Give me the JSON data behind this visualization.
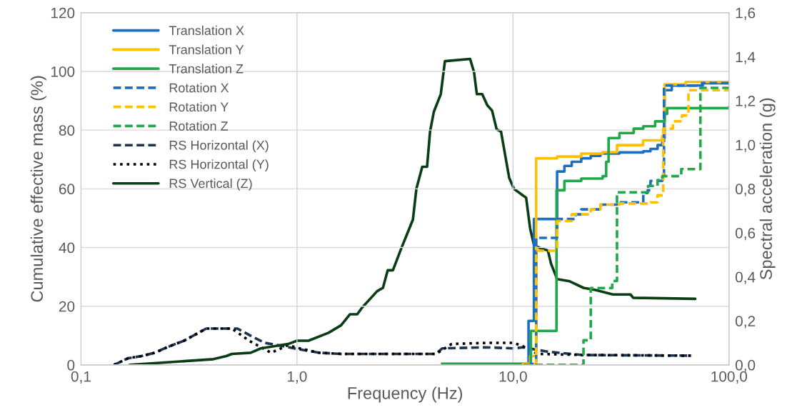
{
  "chart_data": {
    "type": "line",
    "xlabel": "Frequency (Hz)",
    "ylabel": "Cumulative effective mass (%)",
    "y2label": "Spectral acceleration (g)",
    "log": "x",
    "grid": true,
    "legend": "top left",
    "xlim": [
      0.1,
      100
    ],
    "xticks": [
      {
        "value": 0.1,
        "label": "0,1"
      },
      {
        "value": 1,
        "label": "1,0"
      },
      {
        "value": 10,
        "label": "10,0"
      },
      {
        "value": 100,
        "label": "100,0"
      }
    ],
    "ylim": [
      0,
      120
    ],
    "yticks": [
      0,
      20,
      40,
      60,
      80,
      100,
      120
    ],
    "y2lim": [
      0,
      1.6
    ],
    "y2ticks": [
      {
        "value": 0,
        "label": "0,0"
      },
      {
        "value": 0.2,
        "label": "0,2"
      },
      {
        "value": 0.4,
        "label": "0,4"
      },
      {
        "value": 0.6,
        "label": "0,6"
      },
      {
        "value": 0.8,
        "label": "0,8"
      },
      {
        "value": 1.0,
        "label": "1,0"
      },
      {
        "value": 1.2,
        "label": "1,2"
      },
      {
        "value": 1.4,
        "label": "1,4"
      },
      {
        "value": 1.6,
        "label": "1,6"
      }
    ],
    "series": [
      {
        "name": "Translation X",
        "type": "step",
        "color": "#1f6fc0",
        "line_style": "solid",
        "x": [
          4.7,
          10.8,
          11.8,
          12.5,
          15.4,
          16.0,
          17.3,
          18.7,
          20.7,
          22.9,
          25.4,
          31.1,
          40.1,
          43.3,
          46.7,
          49.1,
          50.3,
          54.3,
          75.6,
          100
        ],
        "values": [
          0.5,
          0.5,
          15,
          49.7,
          49.7,
          65.9,
          67.8,
          69.2,
          70.4,
          71.2,
          72.0,
          72.4,
          72.8,
          73.6,
          74.9,
          77.3,
          93.6,
          95.2,
          96.0,
          96.0
        ]
      },
      {
        "name": "Translation Y",
        "type": "step",
        "color": "#ffc000",
        "line_style": "solid",
        "x": [
          4.7,
          10.8,
          12.0,
          12.8,
          16,
          20.7,
          26,
          30.3,
          40,
          49.1,
          50.3,
          63,
          100
        ],
        "values": [
          0.5,
          0.5,
          3,
          70.4,
          71.0,
          72.0,
          72.5,
          74.9,
          76.5,
          78.1,
          95.6,
          96.4,
          96.6
        ]
      },
      {
        "name": "Translation Z",
        "type": "step",
        "color": "#21a84a",
        "line_style": "solid",
        "x": [
          4.7,
          11.2,
          12.1,
          15.2,
          15.9,
          17.3,
          20.7,
          26,
          27,
          27.7,
          31.1,
          36.2,
          40.1,
          45.5,
          50.3,
          51.7,
          100
        ],
        "values": [
          0.3,
          0.3,
          11.6,
          11.6,
          59.5,
          62.7,
          63.5,
          64.3,
          69.2,
          77.3,
          79.0,
          80.5,
          81.3,
          83.0,
          85.5,
          87.5,
          87.9
        ]
      },
      {
        "name": "Rotation X",
        "type": "step",
        "color": "#1f6fc0",
        "line_style": "dashed",
        "x": [
          11.5,
          12.2,
          12.8,
          15.4,
          16.0,
          19.5,
          20.7,
          25.4,
          30.3,
          40.1,
          42,
          43.3,
          49.1,
          50,
          75,
          100
        ],
        "values": [
          0.3,
          0.3,
          43.3,
          43.3,
          49.7,
          51.3,
          53.0,
          54.6,
          55.4,
          58.6,
          59.5,
          62.7,
          63.5,
          95.2,
          96.0,
          96.0
        ]
      },
      {
        "name": "Rotation Y",
        "type": "step",
        "color": "#ffc000",
        "line_style": "dashed",
        "x": [
          11.0,
          11.8,
          12.8,
          15.0,
          16.0,
          18.7,
          22.9,
          25.4,
          31.1,
          43.3,
          46.7,
          49.6,
          55,
          60.6,
          64.9,
          100
        ],
        "values": [
          0.3,
          0.3,
          38.9,
          38.9,
          49.0,
          51.3,
          53.0,
          54.6,
          55.0,
          55.4,
          57.8,
          80.5,
          83.0,
          85.0,
          93.6,
          93.6
        ]
      },
      {
        "name": "Rotation Z",
        "type": "step",
        "color": "#21a84a",
        "line_style": "dashed",
        "x": [
          4.7,
          20.2,
          21.2,
          22.9,
          28.8,
          30.3,
          42.2,
          46.7,
          49.1,
          60.1,
          73.7,
          100
        ],
        "values": [
          0.0,
          0.0,
          8.4,
          26.2,
          28.6,
          58.8,
          61.0,
          63.0,
          64.3,
          66.7,
          94.4,
          95.6
        ]
      },
      {
        "name": "RS Horizontal (X)",
        "axis": "y2",
        "color": "#1c3553",
        "line_style": "dashed",
        "x": [
          0.142,
          0.165,
          0.19,
          0.22,
          0.25,
          0.3,
          0.38,
          0.53,
          0.63,
          0.71,
          0.81,
          0.97,
          1.27,
          1.6,
          4.4,
          4.7,
          7.5,
          10.1,
          11.1,
          14.5,
          21,
          67
        ],
        "values": [
          0.0,
          0.03,
          0.04,
          0.055,
          0.08,
          0.11,
          0.165,
          0.165,
          0.125,
          0.1,
          0.09,
          0.075,
          0.055,
          0.05,
          0.05,
          0.075,
          0.08,
          0.075,
          0.08,
          0.06,
          0.045,
          0.042
        ]
      },
      {
        "name": "RS Horizontal (Y)",
        "axis": "y2",
        "color": "#000000",
        "line_style": "dotted",
        "x": [
          0.142,
          0.165,
          0.19,
          0.22,
          0.25,
          0.3,
          0.38,
          0.5,
          0.6,
          0.76,
          0.91,
          1.03,
          1.27,
          1.6,
          4.4,
          5.2,
          7.5,
          10.1,
          11.1,
          13,
          21,
          67
        ],
        "values": [
          0.0,
          0.03,
          0.04,
          0.055,
          0.08,
          0.11,
          0.165,
          0.165,
          0.11,
          0.055,
          0.09,
          0.075,
          0.055,
          0.05,
          0.05,
          0.095,
          0.1,
          0.1,
          0.085,
          0.05,
          0.045,
          0.042
        ]
      },
      {
        "name": "RS Vertical (Z)",
        "axis": "y2",
        "color": "#0b3d15",
        "line_style": "solid",
        "x": [
          0.168,
          0.41,
          0.47,
          0.5,
          0.61,
          0.68,
          0.91,
          1.0,
          1.13,
          1.4,
          1.6,
          1.76,
          1.9,
          2.0,
          2.35,
          2.5,
          2.63,
          2.78,
          3.04,
          3.44,
          3.57,
          3.8,
          4.0,
          4.13,
          4.3,
          4.63,
          4.84,
          6.33,
          6.6,
          6.8,
          7.2,
          7.6,
          8.0,
          8.4,
          8.8,
          9.6,
          10.1,
          11.1,
          11.5,
          12.0,
          12.5,
          13.4,
          14.5,
          15.0,
          16.0,
          18.3,
          21.2,
          24.1,
          29,
          35,
          36,
          69.8
        ],
        "values": [
          0.0,
          0.026,
          0.04,
          0.05,
          0.055,
          0.075,
          0.095,
          0.11,
          0.11,
          0.146,
          0.18,
          0.23,
          0.23,
          0.26,
          0.335,
          0.35,
          0.43,
          0.43,
          0.53,
          0.66,
          0.8,
          0.9,
          0.9,
          1.06,
          1.15,
          1.23,
          1.38,
          1.39,
          1.33,
          1.23,
          1.23,
          1.18,
          1.155,
          1.07,
          1.06,
          0.85,
          0.8,
          0.77,
          0.76,
          0.62,
          0.545,
          0.53,
          0.52,
          0.46,
          0.39,
          0.38,
          0.35,
          0.34,
          0.32,
          0.32,
          0.305,
          0.3
        ]
      }
    ]
  }
}
